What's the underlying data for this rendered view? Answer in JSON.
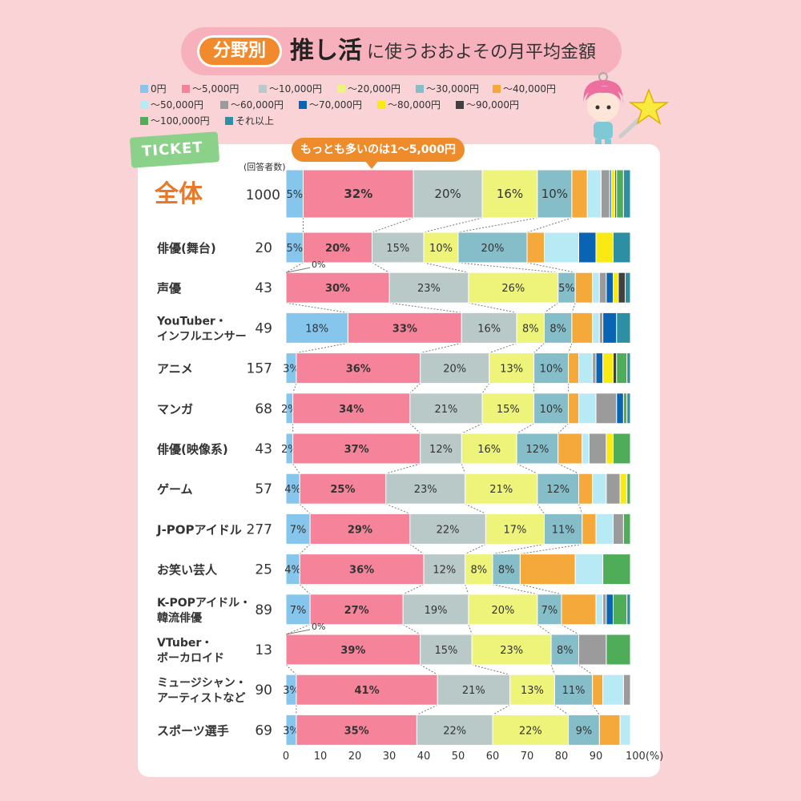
{
  "title": {
    "badge": "分野別",
    "main": "推し活",
    "sub": "に使うおおよその月平均金額"
  },
  "ticket_label": "TICKET",
  "callout": "もっとも多いのは1〜5,000円",
  "respondents_header": "(回答者数)",
  "chart_data": {
    "type": "bar",
    "orientation": "horizontal-stacked-100",
    "xlim": [
      0,
      100
    ],
    "x_ticks": [
      "0",
      "10",
      "20",
      "30",
      "40",
      "50",
      "60",
      "70",
      "80",
      "90",
      "100(%)"
    ],
    "segments": [
      {
        "name": "0円",
        "color": "#86c5ec"
      },
      {
        "name": "〜5,000円",
        "color": "#f5849b"
      },
      {
        "name": "〜10,000円",
        "color": "#b9c9c8"
      },
      {
        "name": "〜20,000円",
        "color": "#eef37a"
      },
      {
        "name": "〜30,000円",
        "color": "#85bec9"
      },
      {
        "name": "〜40,000円",
        "color": "#f5a93a"
      },
      {
        "name": "〜50,000円",
        "color": "#b8eaf6"
      },
      {
        "name": "〜60,000円",
        "color": "#9b9b9b"
      },
      {
        "name": "〜70,000円",
        "color": "#0a64b4"
      },
      {
        "name": "〜80,000円",
        "color": "#f8ea12"
      },
      {
        "name": "〜90,000円",
        "color": "#404040"
      },
      {
        "name": "〜100,000円",
        "color": "#4fad5a"
      },
      {
        "name": "それ以上",
        "color": "#2c8fa3"
      }
    ],
    "rows": [
      {
        "label": [
          "全体"
        ],
        "n": "1000",
        "highlight": true,
        "values": [
          5,
          32,
          20,
          16,
          10,
          4.5,
          4,
          2.5,
          0.5,
          1,
          0.5,
          2,
          2
        ],
        "labels": [
          "5%",
          "32%",
          "20%",
          "16%",
          "10%"
        ]
      },
      {
        "label": [
          "俳優(舞台)"
        ],
        "n": "20",
        "values": [
          5,
          20,
          15,
          10,
          20,
          5,
          10,
          0,
          5,
          5,
          0,
          0,
          5
        ],
        "labels": [
          "5%",
          "20%",
          "15%",
          "10%",
          "20%"
        ]
      },
      {
        "label": [
          "声優"
        ],
        "n": "43",
        "values": [
          0,
          30,
          23,
          26,
          5,
          5,
          2,
          2,
          2,
          1.5,
          2,
          0,
          1.5
        ],
        "labels": [
          "",
          "30%",
          "23%",
          "26%",
          "5%"
        ],
        "zero_label": "0%"
      },
      {
        "label": [
          "YouTuber・",
          "インフルエンサー"
        ],
        "n": "49",
        "values": [
          18,
          33,
          16,
          8,
          8,
          6,
          2,
          1,
          4,
          0,
          0,
          0,
          4
        ],
        "labels": [
          "18%",
          "33%",
          "16%",
          "8%",
          "8%"
        ]
      },
      {
        "label": [
          "アニメ"
        ],
        "n": "157",
        "values": [
          3,
          36,
          20,
          13,
          10,
          3,
          4,
          1,
          2,
          3,
          1,
          3,
          1
        ],
        "labels": [
          "3%",
          "36%",
          "20%",
          "13%",
          "10%"
        ]
      },
      {
        "label": [
          "マンガ"
        ],
        "n": "68",
        "values": [
          2,
          34,
          21,
          15,
          10,
          3,
          5,
          6,
          2,
          0,
          0,
          1,
          1
        ],
        "labels": [
          "2%",
          "34%",
          "21%",
          "15%",
          "10%"
        ]
      },
      {
        "label": [
          "俳優(映像系)"
        ],
        "n": "43",
        "values": [
          2,
          37,
          12,
          16,
          12,
          7,
          2,
          5,
          0,
          2,
          0,
          5,
          0
        ],
        "labels": [
          "2%",
          "37%",
          "12%",
          "16%",
          "12%"
        ]
      },
      {
        "label": [
          "ゲーム"
        ],
        "n": "57",
        "values": [
          4,
          25,
          23,
          21,
          12,
          4,
          4,
          4,
          0,
          2,
          0,
          1,
          0
        ],
        "labels": [
          "4%",
          "25%",
          "23%",
          "21%",
          "12%"
        ]
      },
      {
        "label": [
          "J-POPアイドル"
        ],
        "n": "277",
        "values": [
          7,
          29,
          22,
          17,
          11,
          4,
          5,
          3,
          0,
          0,
          0,
          2,
          0
        ],
        "labels": [
          "7%",
          "29%",
          "22%",
          "17%",
          "11%"
        ]
      },
      {
        "label": [
          "お笑い芸人"
        ],
        "n": "25",
        "values": [
          4,
          36,
          12,
          8,
          8,
          16,
          8,
          0,
          0,
          0,
          0,
          8,
          0
        ],
        "labels": [
          "4%",
          "36%",
          "12%",
          "8%",
          "8%"
        ]
      },
      {
        "label": [
          "K-POPアイドル・",
          "韓流俳優"
        ],
        "n": "89",
        "values": [
          7,
          27,
          19,
          20,
          7,
          10,
          2,
          1,
          2,
          0,
          0,
          4,
          1
        ],
        "labels": [
          "7%",
          "27%",
          "19%",
          "20%",
          "7%"
        ]
      },
      {
        "label": [
          "VTuber・",
          "ボーカロイド"
        ],
        "n": "13",
        "values": [
          0,
          39,
          15,
          23,
          8,
          0,
          0,
          8,
          0,
          0,
          0,
          7,
          0
        ],
        "labels": [
          "",
          "39%",
          "15%",
          "23%",
          "8%"
        ],
        "zero_label": "0%"
      },
      {
        "label": [
          "ミュージシャン・",
          "アーティストなど"
        ],
        "n": "90",
        "values": [
          3,
          41,
          21,
          13,
          11,
          3,
          6,
          2,
          0,
          0,
          0,
          0,
          0
        ],
        "labels": [
          "3%",
          "41%",
          "21%",
          "13%",
          "11%"
        ]
      },
      {
        "label": [
          "スポーツ選手"
        ],
        "n": "69",
        "values": [
          3,
          35,
          22,
          22,
          9,
          6,
          3,
          0,
          0,
          0,
          0,
          0,
          0
        ],
        "labels": [
          "3%",
          "35%",
          "22%",
          "22%",
          "9%"
        ]
      }
    ]
  }
}
